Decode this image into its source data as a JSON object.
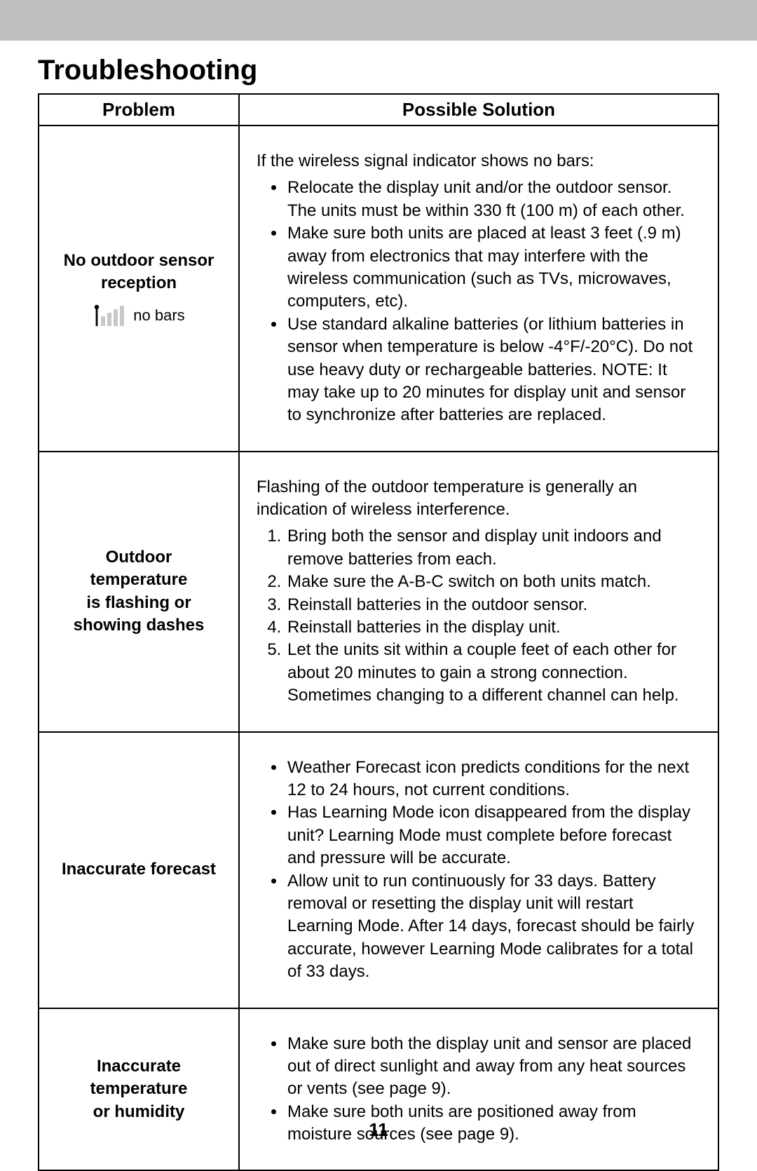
{
  "page": {
    "title": "Troubleshooting",
    "page_number": "11",
    "topbar_color": "#bfbfbf",
    "border_color": "#000000",
    "text_color": "#000000",
    "signal_icon": {
      "bar_color_filled": "#000000",
      "bar_color_empty": "#c8c8c8",
      "label": "no bars"
    }
  },
  "table": {
    "headers": {
      "problem": "Problem",
      "solution": "Possible Solution"
    },
    "rows": [
      {
        "problem_lines": [
          "No outdoor sensor",
          "reception"
        ],
        "has_signal_icon": true,
        "intro": "If the wireless signal indicator shows no bars:",
        "list_type": "ul",
        "items": [
          "Relocate the display unit and/or the outdoor sensor. The units must be within 330 ft (100 m) of each other.",
          "Make sure both units are placed at least 3 feet (.9 m) away from electronics that may interfere with the wireless communication (such as TVs, microwaves, computers, etc).",
          "Use standard alkaline batteries (or lithium batteries in sensor when temperature is below -4°F/-20°C). Do not use heavy duty or rechargeable batteries. NOTE: It may take up to 20 minutes for display unit and sensor to synchronize after batteries are replaced."
        ]
      },
      {
        "problem_lines": [
          "Outdoor",
          "temperature",
          "is flashing or",
          "showing dashes"
        ],
        "has_signal_icon": false,
        "intro": "Flashing of the outdoor temperature is generally an indication of wireless interference.",
        "list_type": "ol",
        "items": [
          "Bring both the sensor and display unit indoors and remove batteries from each.",
          "Make sure the A-B-C switch on both units match.",
          "Reinstall batteries in the outdoor sensor.",
          "Reinstall batteries in the display unit.",
          "Let the units sit within a couple feet of each other for about 20 minutes to gain a strong connection. Sometimes changing to a different channel can help."
        ]
      },
      {
        "problem_lines": [
          "Inaccurate forecast"
        ],
        "has_signal_icon": false,
        "intro": null,
        "list_type": "ul",
        "items": [
          "Weather Forecast icon predicts conditions for the next 12 to 24 hours, not current conditions.",
          "Has Learning Mode icon disappeared from the display unit? Learning Mode must complete before forecast and pressure will be accurate.",
          "Allow unit to run continuously for 33 days. Battery removal or resetting the display unit will restart Learning Mode. After 14 days, forecast should be fairly accurate, however Learning Mode calibrates for a total of 33 days."
        ]
      },
      {
        "problem_lines": [
          "Inaccurate",
          "temperature",
          "or humidity"
        ],
        "has_signal_icon": false,
        "intro": null,
        "list_type": "ul",
        "items": [
          "Make sure both the display unit and sensor are placed out of direct sunlight and away from any heat sources or vents (see page 9).",
          "Make sure both units are positioned away from moisture sources (see page 9)."
        ]
      }
    ]
  }
}
